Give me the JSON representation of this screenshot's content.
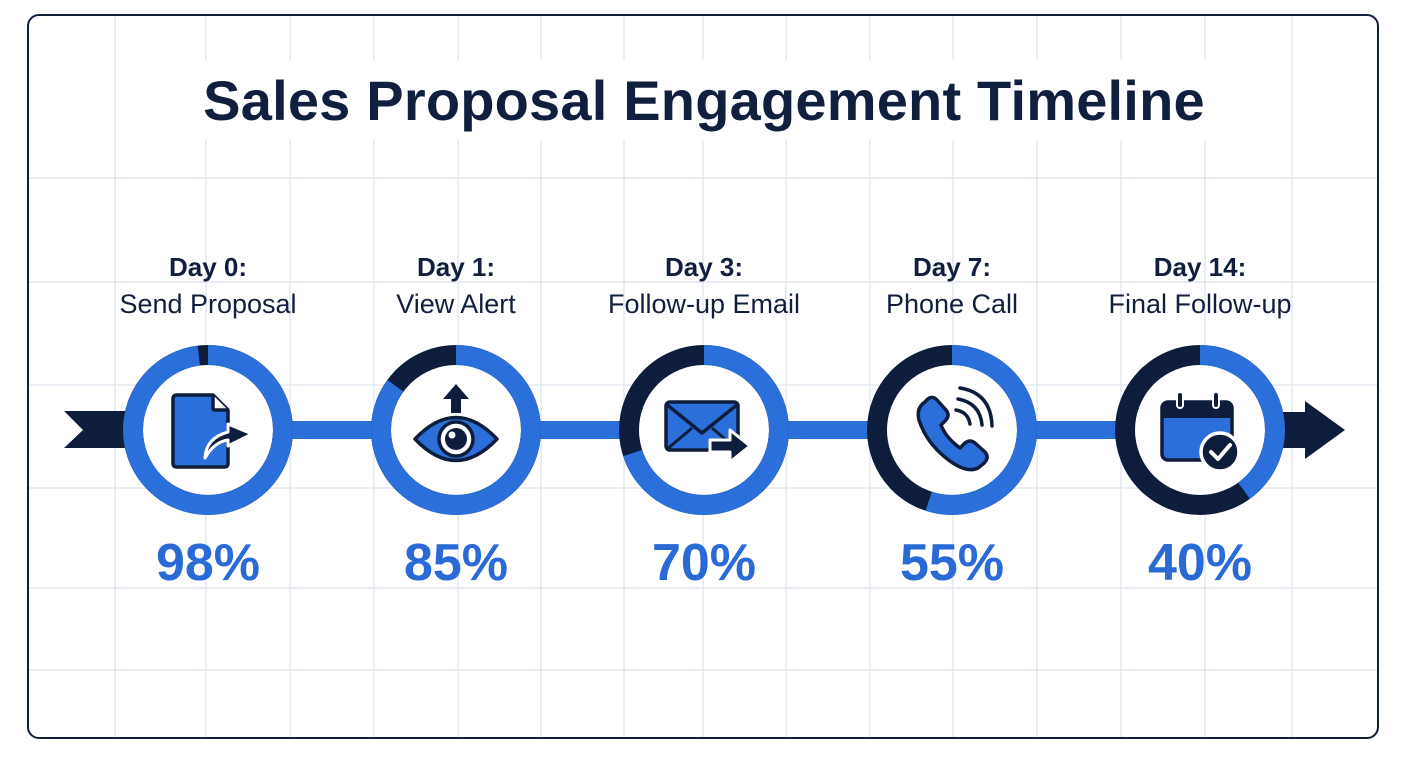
{
  "title": "Sales Proposal Engagement Timeline",
  "colors": {
    "primary_blue": "#2b6fdb",
    "navy": "#0f1d3c",
    "percent_text": "#2a6ad6",
    "grid": "#e3e8f0",
    "frame_border": "#13203b"
  },
  "steps": [
    {
      "day": "Day 0:",
      "name": "Send Proposal",
      "percent": "98%",
      "value": 98,
      "icon": "document-send-icon"
    },
    {
      "day": "Day 1:",
      "name": "View Alert",
      "percent": "85%",
      "value": 85,
      "icon": "eye-alert-icon"
    },
    {
      "day": "Day 3:",
      "name": "Follow-up Email",
      "percent": "70%",
      "value": 70,
      "icon": "email-forward-icon"
    },
    {
      "day": "Day 7:",
      "name": "Phone Call",
      "percent": "55%",
      "value": 55,
      "icon": "phone-call-icon"
    },
    {
      "day": "Day 14:",
      "name": "Final Follow-up",
      "percent": "40%",
      "value": 40,
      "icon": "calendar-check-icon"
    }
  ],
  "chart_data": {
    "type": "timeline-progress-rings",
    "title": "Sales Proposal Engagement Timeline",
    "categories": [
      "Day 0: Send Proposal",
      "Day 1: View Alert",
      "Day 3: Follow-up Email",
      "Day 7: Phone Call",
      "Day 14: Final Follow-up"
    ],
    "x_days": [
      0,
      1,
      3,
      7,
      14
    ],
    "values": [
      98,
      85,
      70,
      55,
      40
    ],
    "unit": "%",
    "ylim": [
      0,
      100
    ]
  }
}
